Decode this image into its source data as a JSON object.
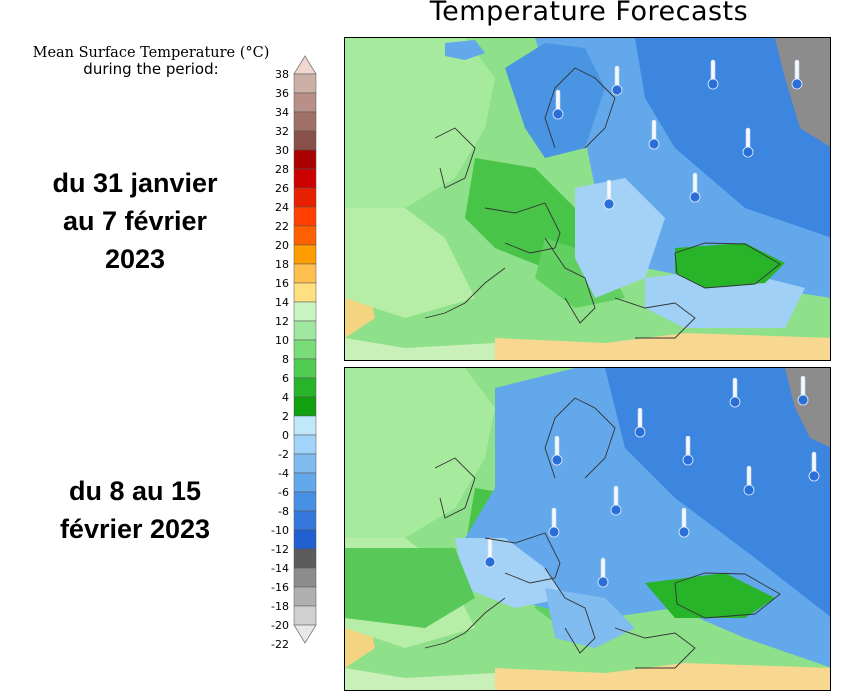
{
  "title": "Temperature Forecasts",
  "legend": {
    "title_line1": "Mean Surface Temperature (°C)",
    "title_line2": "during the period:",
    "ticks": [
      "38",
      "36",
      "34",
      "32",
      "30",
      "28",
      "26",
      "24",
      "22",
      "20",
      "18",
      "16",
      "14",
      "12",
      "10",
      "8",
      "6",
      "4",
      "2",
      "0",
      "-2",
      "-4",
      "-6",
      "-8",
      "-10",
      "-12",
      "-14",
      "-16",
      "-18",
      "-20",
      "-22"
    ],
    "colors": [
      "#ccb0a8",
      "#b89088",
      "#a07068",
      "#885048",
      "#aa0000",
      "#cc0000",
      "#e82000",
      "#ff4000",
      "#ff6000",
      "#ff9c00",
      "#ffc050",
      "#ffe080",
      "#c8f4c0",
      "#a0e8a0",
      "#78dc78",
      "#50cc50",
      "#28b428",
      "#10a010",
      "#c0e8f8",
      "#a0d4f8",
      "#80bcf0",
      "#64a8ec",
      "#4890e4",
      "#3478dc",
      "#2060d0",
      "#5c5c5c",
      "#8c8c8c",
      "#b0b0b0",
      "#d0d0d0"
    ]
  },
  "periods": [
    {
      "label_line1": "du 31 janvier",
      "label_line2": "au 7 février",
      "label_line3": "2023"
    },
    {
      "label_line1": "du 8 au 15",
      "label_line2": "février 2023",
      "label_line3": ""
    }
  ],
  "maps": [
    {
      "name": "forecast-map-week1",
      "icon": "thermometer-cold-icon"
    },
    {
      "name": "forecast-map-week2",
      "icon": "thermometer-cold-icon"
    }
  ]
}
